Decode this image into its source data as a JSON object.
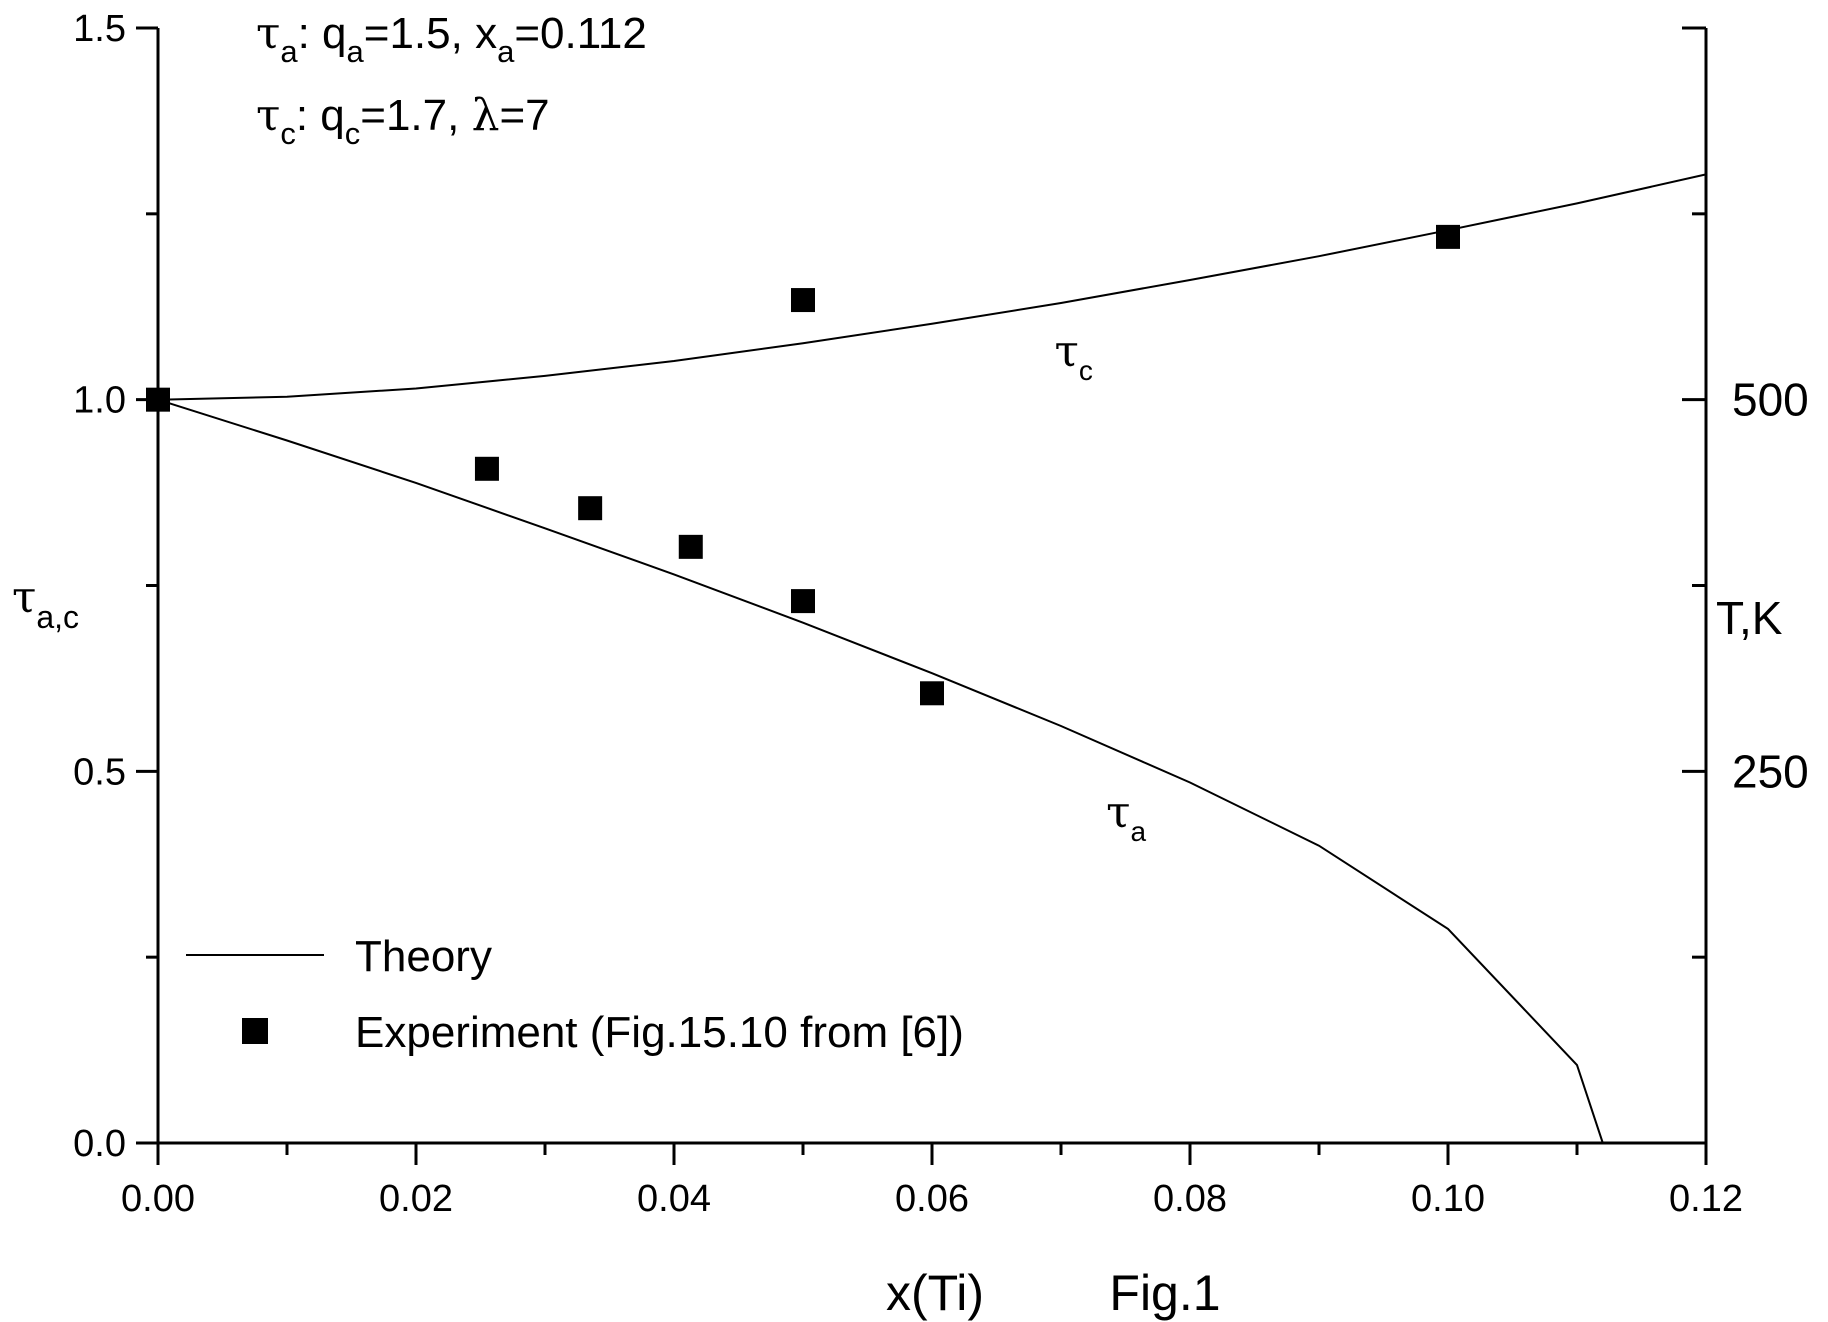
{
  "chart_data": {
    "type": "scatter",
    "xlabel": "x(Ti)",
    "ylabel_left": {
      "base": "τ",
      "sub": "a,c"
    },
    "ylabel_right": "T,K",
    "figure_label": "Fig.1",
    "xlim": [
      0.0,
      0.12
    ],
    "ylim": [
      0.0,
      1.5
    ],
    "x_ticks": [
      "0.00",
      "0.02",
      "0.04",
      "0.06",
      "0.08",
      "0.10",
      "0.12"
    ],
    "y_ticks": [
      "0.0",
      "0.5",
      "1.0",
      "1.5"
    ],
    "right_ticks": [
      {
        "label": "500",
        "tau": 1.0
      },
      {
        "label": "250",
        "tau": 0.5
      }
    ],
    "annotations": [
      {
        "parts": [
          {
            "t": "τ",
            "greek": true
          },
          {
            "t": "a",
            "sub": true
          },
          {
            "t": ":  q"
          },
          {
            "t": "a",
            "sub": true
          },
          {
            "t": "=1.5, x"
          },
          {
            "t": "a",
            "sub": true
          },
          {
            "t": "=0.112"
          }
        ]
      },
      {
        "parts": [
          {
            "t": "τ",
            "greek": true
          },
          {
            "t": "c",
            "sub": true
          },
          {
            "t": ": q"
          },
          {
            "t": "c",
            "sub": true
          },
          {
            "t": "=1.7, "
          },
          {
            "t": "λ",
            "greek": true
          },
          {
            "t": "=7"
          }
        ]
      }
    ],
    "curve_labels": [
      {
        "base": "τ",
        "sub": "c",
        "x": 0.0695,
        "y": 1.045
      },
      {
        "base": "τ",
        "sub": "a",
        "x": 0.0735,
        "y": 0.425
      }
    ],
    "series": [
      {
        "name": "Theory",
        "kind": "line",
        "label": "τc",
        "x": [
          0.0,
          0.01,
          0.02,
          0.03,
          0.04,
          0.05,
          0.06,
          0.07,
          0.08,
          0.09,
          0.1,
          0.11,
          0.12
        ],
        "y": [
          1.0,
          1.004,
          1.015,
          1.032,
          1.052,
          1.076,
          1.102,
          1.13,
          1.161,
          1.193,
          1.228,
          1.264,
          1.303
        ]
      },
      {
        "name": "Theory",
        "kind": "line",
        "label": "τa",
        "x": [
          0.0,
          0.01,
          0.02,
          0.03,
          0.04,
          0.05,
          0.06,
          0.07,
          0.08,
          0.09,
          0.1,
          0.11,
          0.112
        ],
        "y": [
          1.0,
          0.945,
          0.888,
          0.827,
          0.765,
          0.7,
          0.632,
          0.561,
          0.485,
          0.4,
          0.288,
          0.105,
          0.0
        ]
      },
      {
        "name": "Experiment (Fig.15.10 from [6])",
        "kind": "scatter",
        "x": [
          0.0,
          0.0255,
          0.0335,
          0.0413,
          0.05,
          0.05,
          0.06,
          0.1
        ],
        "y": [
          1.0,
          0.907,
          0.854,
          0.802,
          1.134,
          0.729,
          0.605,
          1.219
        ]
      }
    ],
    "legend": {
      "position": "bottom-left",
      "entries": [
        {
          "label": "Theory",
          "marker": "line"
        },
        {
          "label": "Experiment (Fig.15.10 from [6])",
          "marker": "square"
        }
      ]
    },
    "grid": false
  }
}
